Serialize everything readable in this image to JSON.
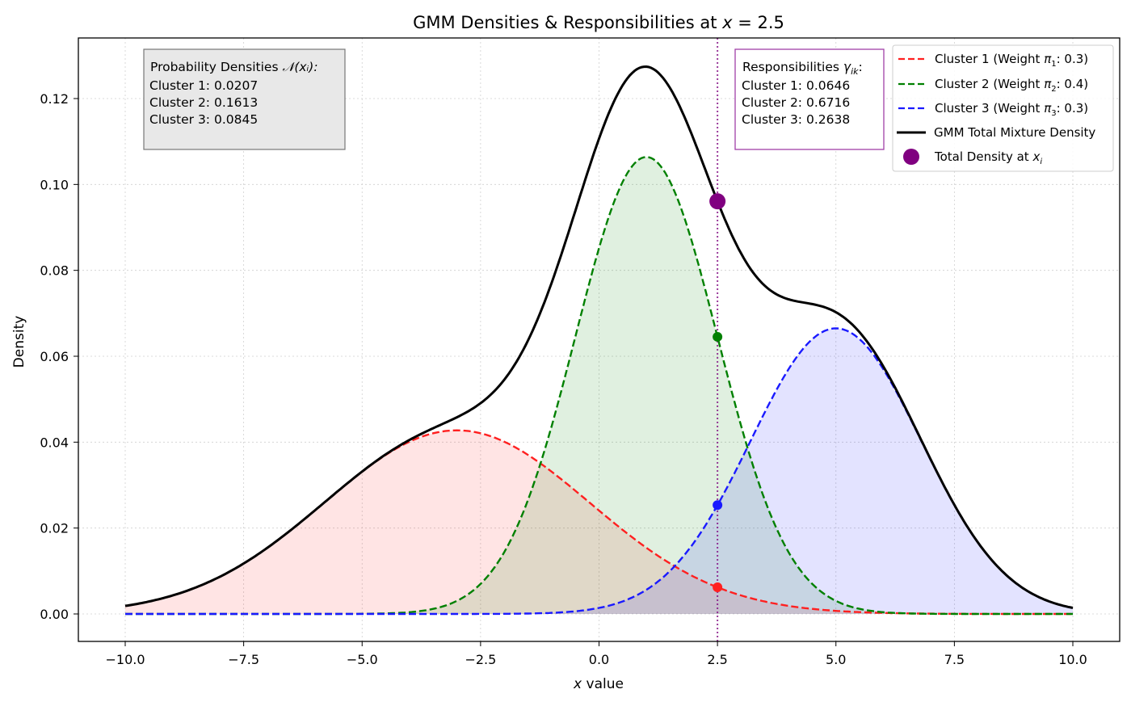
{
  "chart_data": {
    "type": "line",
    "title": "GMM Densities & Responsibilities at x = 2.5",
    "title_parts": {
      "prefix": "GMM Densities & Responsibilities at ",
      "var": "x",
      "suffix": " = 2.5"
    },
    "xlabel": "x value",
    "xlabel_parts": {
      "var": "x",
      "suffix": " value"
    },
    "ylabel": "Density",
    "xlim": [
      -11,
      11
    ],
    "ylim": [
      -0.0064,
      0.1342
    ],
    "grid": true,
    "legend_position": "upper right",
    "x_ticks": [
      -10,
      -7.5,
      -5,
      -2.5,
      0,
      2.5,
      5,
      7.5,
      10
    ],
    "x_tick_labels": [
      "−10.0",
      "−7.5",
      "−5.0",
      "−2.5",
      "0.0",
      "2.5",
      "5.0",
      "7.5",
      "10.0"
    ],
    "y_ticks": [
      0,
      0.02,
      0.04,
      0.06,
      0.08,
      0.1,
      0.12
    ],
    "y_tick_labels": [
      "0.00",
      "0.02",
      "0.04",
      "0.06",
      "0.08",
      "0.10",
      "0.12"
    ],
    "x_range": [
      -10,
      10
    ],
    "query_x": 2.5,
    "series": [
      {
        "name": "Cluster 1 (Weight π₁: 0.3)",
        "legend_main": "Cluster 1 (Weight ",
        "legend_sub": "1",
        "legend_end": ": 0.3)",
        "color": "#ff2020",
        "fill": "#ffd6d6",
        "style": "dashed",
        "weight": 0.3,
        "mean": -3,
        "std": 2.8,
        "density_at_x": 0.0207,
        "weighted_density_at_x": 0.0062,
        "responsibility": 0.0646
      },
      {
        "name": "Cluster 2 (Weight π₂: 0.4)",
        "legend_main": "Cluster 2 (Weight ",
        "legend_sub": "2",
        "legend_end": ": 0.4)",
        "color": "#008000",
        "fill": "#d8ecd8",
        "style": "dashed",
        "weight": 0.4,
        "mean": 1,
        "std": 1.5,
        "density_at_x": 0.1613,
        "weighted_density_at_x": 0.0645,
        "responsibility": 0.6716
      },
      {
        "name": "Cluster 3 (Weight π₃: 0.3)",
        "legend_main": "Cluster 3 (Weight ",
        "legend_sub": "3",
        "legend_end": ": 0.3)",
        "color": "#1a1aff",
        "fill": "#d6d6ff",
        "style": "dashed",
        "weight": 0.3,
        "mean": 5,
        "std": 1.8,
        "density_at_x": 0.0845,
        "weighted_density_at_x": 0.0254,
        "responsibility": 0.2638
      },
      {
        "name": "GMM Total Mixture Density",
        "color": "#000000",
        "style": "solid",
        "total_density_at_x": 0.0961
      }
    ],
    "marker": {
      "name": "Total Density at x_i",
      "legend_main": "Total Density at ",
      "legend_var": "x",
      "legend_sub": "i",
      "color": "#800080",
      "x": 2.5,
      "y": 0.0961
    },
    "vline": {
      "x": 2.5,
      "color": "#800080",
      "style": "dotted"
    },
    "annotations": {
      "densities_box": {
        "heading": "Probability Densities ",
        "heading_math": "𝒩(xᵢ):",
        "lines": [
          "Cluster 1: 0.0207",
          "Cluster 2: 0.1613",
          "Cluster 3: 0.0845"
        ]
      },
      "responsibilities_box": {
        "heading": "Responsibilities ",
        "heading_math": "γ",
        "heading_sub": "ik",
        "heading_end": ":",
        "lines": [
          "Cluster 1: 0.0646",
          "Cluster 2: 0.6716",
          "Cluster 3: 0.2638"
        ]
      }
    },
    "legend": {
      "total_label": "GMM Total Mixture Density"
    }
  }
}
